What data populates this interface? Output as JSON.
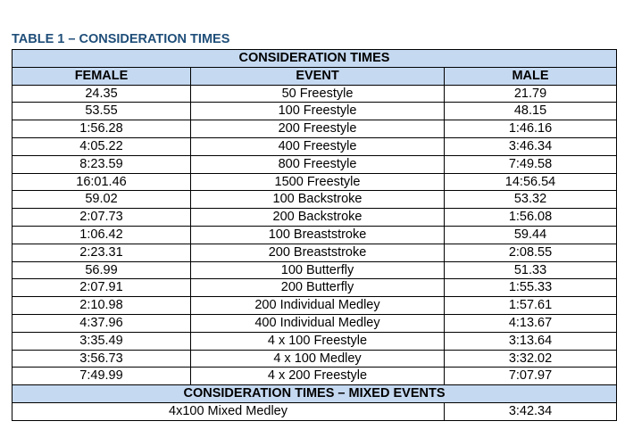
{
  "title": "TABLE 1 – CONSIDERATION TIMES",
  "table": {
    "section_heading": "CONSIDERATION TIMES",
    "columns": [
      "FEMALE",
      "EVENT",
      "MALE"
    ],
    "rows": [
      [
        "24.35",
        "50 Freestyle",
        "21.79"
      ],
      [
        "53.55",
        "100 Freestyle",
        "48.15"
      ],
      [
        "1:56.28",
        "200 Freestyle",
        "1:46.16"
      ],
      [
        "4:05.22",
        "400 Freestyle",
        "3:46.34"
      ],
      [
        "8:23.59",
        "800 Freestyle",
        "7:49.58"
      ],
      [
        "16:01.46",
        "1500 Freestyle",
        "14:56.54"
      ],
      [
        "59.02",
        "100 Backstroke",
        "53.32"
      ],
      [
        "2:07.73",
        "200 Backstroke",
        "1:56.08"
      ],
      [
        "1:06.42",
        "100 Breaststroke",
        "59.44"
      ],
      [
        "2:23.31",
        "200 Breaststroke",
        "2:08.55"
      ],
      [
        "56.99",
        "100 Butterfly",
        "51.33"
      ],
      [
        "2:07.91",
        "200 Butterfly",
        "1:55.33"
      ],
      [
        "2:10.98",
        "200 Individual Medley",
        "1:57.61"
      ],
      [
        "4:37.96",
        "400 Individual Medley",
        "4:13.67"
      ],
      [
        "3:35.49",
        "4 x 100 Freestyle",
        "3:13.64"
      ],
      [
        "3:56.73",
        "4 x 100 Medley",
        "3:32.02"
      ],
      [
        "7:49.99",
        "4 x 200 Freestyle",
        "7:07.97"
      ]
    ],
    "mixed_heading": "CONSIDERATION TIMES – MIXED EVENTS",
    "mixed_rows": [
      {
        "event": "4x100 Mixed Medley",
        "time": "3:42.34"
      }
    ]
  },
  "colors": {
    "title": "#1f4e79",
    "header_fill": "#c5d9f1",
    "border": "#000000"
  }
}
